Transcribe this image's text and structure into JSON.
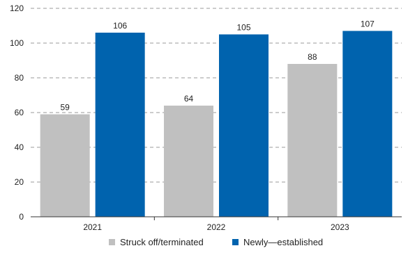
{
  "chart_data": {
    "type": "bar",
    "title": "",
    "xlabel": "",
    "ylabel": "",
    "categories": [
      "2021",
      "2022",
      "2023"
    ],
    "series": [
      {
        "name": "Struck off/terminated",
        "values": [
          59,
          64,
          88
        ],
        "color": "#c0c0c0"
      },
      {
        "name": "Newly—established",
        "values": [
          106,
          105,
          107
        ],
        "color": "#0063ae"
      }
    ],
    "ylim": [
      0,
      120
    ],
    "yticks": [
      "0",
      "20",
      "40",
      "60",
      "80",
      "100",
      "120"
    ],
    "grid": true,
    "legend": "bottom-center"
  }
}
